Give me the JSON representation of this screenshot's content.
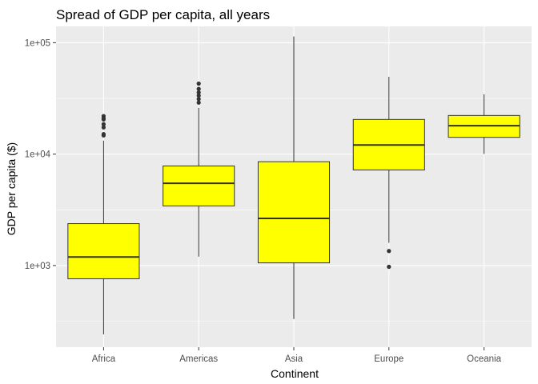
{
  "chart_data": {
    "type": "boxplot",
    "title": "Spread of GDP per capita, all years",
    "xlabel": "Continent",
    "ylabel": "GDP per capita ($)",
    "y_scale": "log10",
    "ylim": [
      185,
      140000
    ],
    "y_ticks": [
      {
        "value": 1000,
        "label": "1e+03"
      },
      {
        "value": 10000,
        "label": "1e+04"
      },
      {
        "value": 100000,
        "label": "1e+05"
      }
    ],
    "y_minor_ticks": [
      316,
      3162,
      31623
    ],
    "box_fill": "#ffff00",
    "box_stroke": "#333333",
    "panel_background": "#ebebeb",
    "grid_color": "#ffffff",
    "grid": true,
    "legend": "none",
    "categories": [
      "Africa",
      "Americas",
      "Asia",
      "Europe",
      "Oceania"
    ],
    "boxes": [
      {
        "category": "Africa",
        "whisker_low": 241,
        "q1": 761,
        "median": 1192,
        "q3": 2377,
        "whisker_high": 13206,
        "outliers": [
          14723,
          15113,
          17364,
          18558,
          20473,
          21011,
          21951
        ]
      },
      {
        "category": "Americas",
        "whisker_low": 1202,
        "q1": 3428,
        "median": 5466,
        "q3": 7830,
        "whisker_high": 26000,
        "outliers": [
          29000,
          31200,
          33500,
          35800,
          38500,
          42952
        ]
      },
      {
        "category": "Asia",
        "whisker_low": 331,
        "q1": 1057,
        "median": 2647,
        "q3": 8549,
        "whisker_high": 113523,
        "outliers": []
      },
      {
        "category": "Europe",
        "whisker_low": 1600,
        "q1": 7213,
        "median": 12082,
        "q3": 20461,
        "whisker_high": 49357,
        "outliers": [
          1350,
          974
        ]
      },
      {
        "category": "Oceania",
        "whisker_low": 10040,
        "q1": 14142,
        "median": 17983,
        "q3": 22214,
        "whisker_high": 34435,
        "outliers": []
      }
    ]
  }
}
